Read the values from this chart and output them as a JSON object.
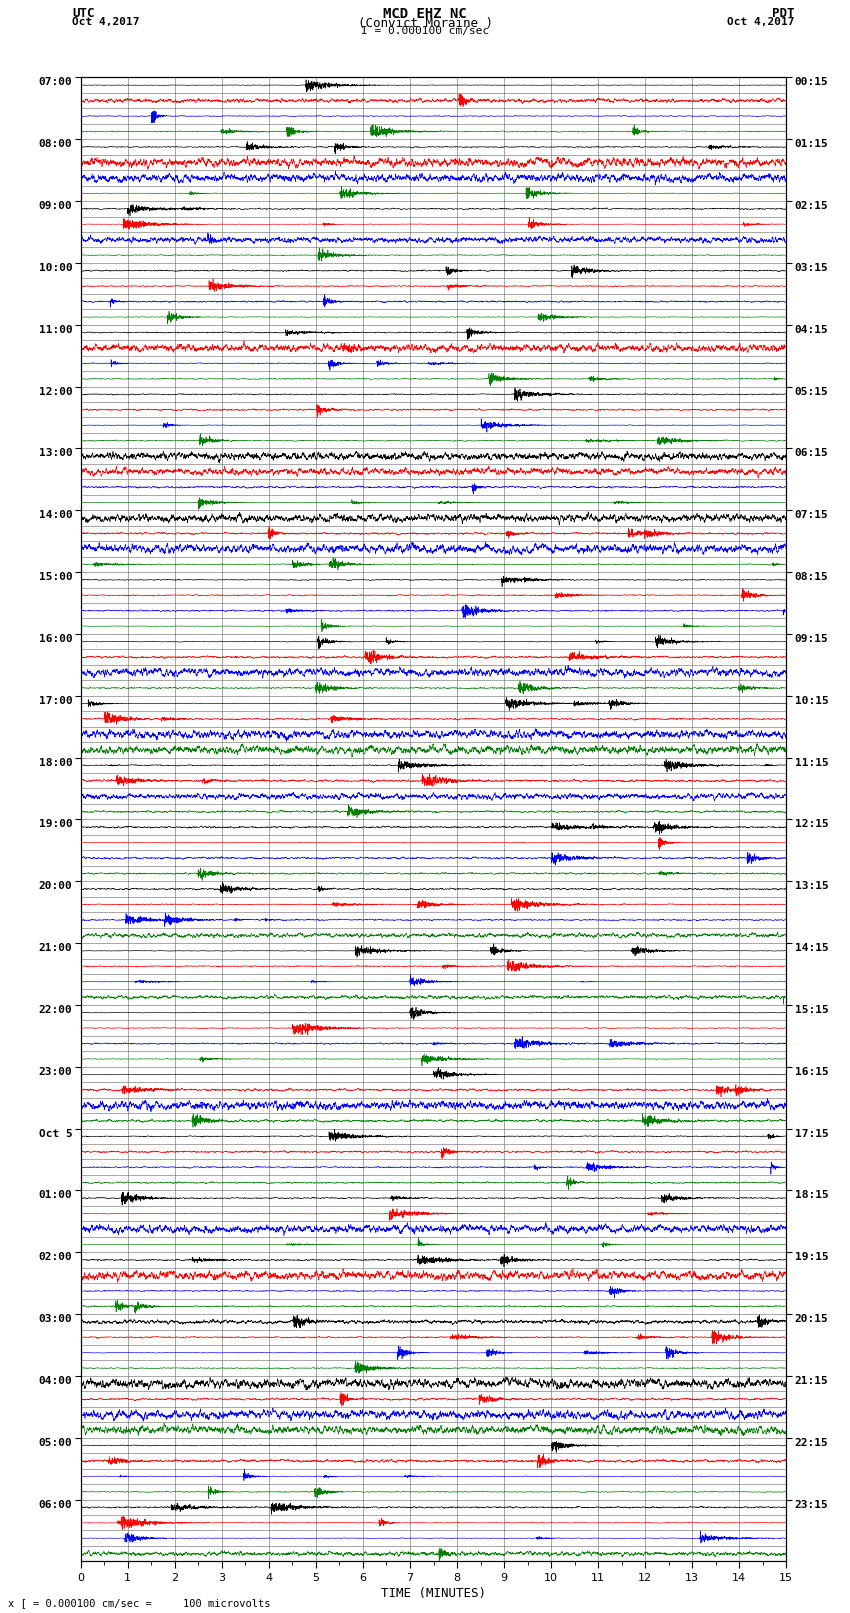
{
  "title_line1": "MCD EHZ NC",
  "title_line2": "(Convict Moraine )",
  "scale_bar": "I = 0.000100 cm/sec",
  "left_label": "UTC",
  "left_date": "Oct 4,2017",
  "right_label": "PDT",
  "right_date": "Oct 4,2017",
  "xlabel": "TIME (MINUTES)",
  "bottom_text": "x [ = 0.000100 cm/sec =     100 microvolts",
  "utc_hour_labels": [
    "07:00",
    "08:00",
    "09:00",
    "10:00",
    "11:00",
    "12:00",
    "13:00",
    "14:00",
    "15:00",
    "16:00",
    "17:00",
    "18:00",
    "19:00",
    "20:00",
    "21:00",
    "22:00",
    "23:00",
    "Oct 5",
    "01:00",
    "02:00",
    "03:00",
    "04:00",
    "05:00",
    "06:00"
  ],
  "pdt_hour_labels": [
    "00:15",
    "01:15",
    "02:15",
    "03:15",
    "04:15",
    "05:15",
    "06:15",
    "07:15",
    "08:15",
    "09:15",
    "10:15",
    "11:15",
    "12:15",
    "13:15",
    "14:15",
    "15:15",
    "16:15",
    "17:15",
    "18:15",
    "19:15",
    "20:15",
    "21:15",
    "22:15",
    "23:15"
  ],
  "colors": [
    "black",
    "red",
    "blue",
    "green"
  ],
  "n_hours": 24,
  "n_minutes": 15,
  "bg_color": "white",
  "grid_color": "#666666",
  "seed": 12345
}
